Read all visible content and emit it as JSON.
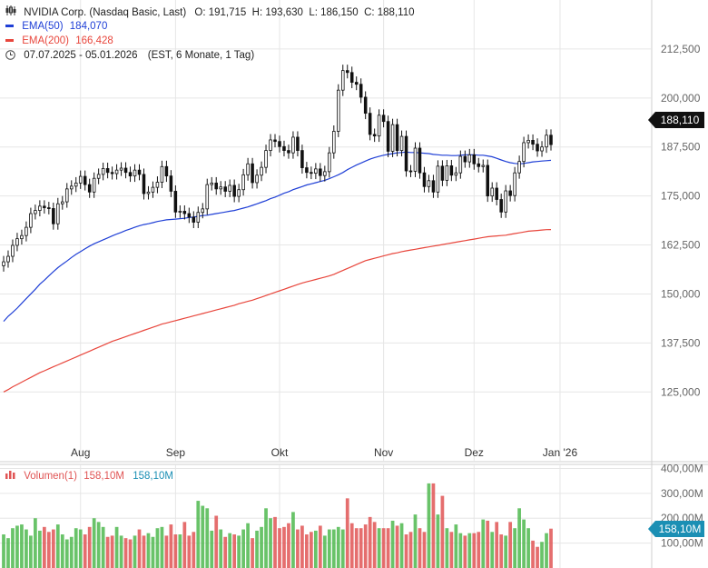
{
  "colors": {
    "up": "#4fb84f",
    "down": "#e05555",
    "ema50": "#1f3fd6",
    "ema200": "#e8463c",
    "candle": "#111111",
    "grid": "#e6e6e6",
    "axis_text": "#666666",
    "vol_badge": "#1b8fb4",
    "price_badge": "#111111"
  },
  "header": {
    "title": "NVIDIA Corp. (Nasdaq Basic, Last)",
    "ohlc": "O: 191,715  H: 193,630  L: 186,150  C: 188,110",
    "ema50_label": "EMA(50)",
    "ema50_value": "184,070",
    "ema200_label": "EMA(200)",
    "ema200_value": "166,428",
    "range": "07.07.2025 - 05.01.2026",
    "range_note": "(EST, 6 Monate, 1 Tag)",
    "chart_icon": "candlestick-icon",
    "clock_icon": "clock-icon"
  },
  "price_badge": "188,110",
  "volume_header": {
    "label": "Volumen(1)",
    "value_red": "158,10M",
    "value_blue": "158,10M"
  },
  "volume_badge": "158,10M",
  "chart_data": [
    {
      "type": "candlestick",
      "title": "NVIDIA Corp. (Nasdaq Basic, Last)",
      "x_tick_labels": [
        "Aug",
        "Sep",
        "Okt",
        "Nov",
        "Dez",
        "Jan '26"
      ],
      "y_tick_labels": [
        "212,500",
        "200,000",
        "187,500",
        "175,000",
        "162,500",
        "150,000",
        "137,500",
        "125,000"
      ],
      "ylim": [
        113,
        225
      ],
      "grid": true,
      "close": [
        158.2,
        159.6,
        162.4,
        164.1,
        164.9,
        167.0,
        170.5,
        171.3,
        172.4,
        172.0,
        171.8,
        167.9,
        173.0,
        173.5,
        176.8,
        177.5,
        178.3,
        180.0,
        177.9,
        176.0,
        179.5,
        180.5,
        182.0,
        181.0,
        180.7,
        181.6,
        182.1,
        181.0,
        180.1,
        181.6,
        180.5,
        175.6,
        176.0,
        177.2,
        178.5,
        182.5,
        180.1,
        176.2,
        170.9,
        171.1,
        170.5,
        169.6,
        168.3,
        170.8,
        171.7,
        177.9,
        178.3,
        176.8,
        177.3,
        176.2,
        177.7,
        174.9,
        176.6,
        180.4,
        183.2,
        178.4,
        180.3,
        182.3,
        186.6,
        189.3,
        188.9,
        187.6,
        186.6,
        186.0,
        190.0,
        186.6,
        182.2,
        181.0,
        180.8,
        181.9,
        180.2,
        181.2,
        186.0,
        191.5,
        202.0,
        207.0,
        206.5,
        204.0,
        203.5,
        200.2,
        196.1,
        190.7,
        190.3,
        195.6,
        194.0,
        186.4,
        193.2,
        186.6,
        190.2,
        181.4,
        181.3,
        187.2,
        180.9,
        177.4,
        178.9,
        176.0,
        182.6,
        179.0,
        182.7,
        180.3,
        180.9,
        185.1,
        183.7,
        185.5,
        183.2,
        182.5,
        182.8,
        175.0,
        177.0,
        174.1,
        170.9,
        176.3,
        175.1,
        180.9,
        183.8,
        188.6,
        189.2,
        188.2,
        186.5,
        187.5,
        190.5,
        188.1
      ],
      "ema50": [
        143.0,
        144.3,
        145.3,
        146.4,
        147.6,
        148.8,
        150.0,
        151.2,
        152.5,
        153.5,
        154.6,
        155.7,
        156.7,
        157.6,
        158.4,
        159.3,
        160.1,
        160.8,
        161.5,
        162.2,
        162.8,
        163.3,
        163.8,
        164.3,
        164.8,
        165.3,
        165.7,
        166.2,
        166.6,
        167.0,
        167.4,
        167.7,
        167.9,
        168.2,
        168.5,
        168.7,
        168.9,
        169.0,
        169.1,
        169.2,
        169.3,
        169.5,
        169.6,
        169.8,
        170.0,
        170.1,
        170.3,
        170.5,
        170.7,
        170.9,
        171.1,
        171.3,
        171.6,
        171.9,
        172.2,
        172.6,
        173.0,
        173.4,
        173.8,
        174.3,
        174.7,
        175.2,
        175.7,
        176.1,
        176.6,
        177.0,
        177.4,
        177.8,
        178.1,
        178.4,
        178.7,
        179.0,
        179.4,
        179.9,
        180.4,
        181.0,
        181.7,
        182.3,
        182.9,
        183.4,
        183.9,
        184.4,
        184.8,
        185.1,
        185.4,
        185.6,
        185.8,
        186.0,
        186.1,
        186.2,
        186.1,
        186.1,
        186.0,
        185.9,
        185.8,
        185.6,
        185.5,
        185.4,
        185.4,
        185.3,
        185.3,
        185.4,
        185.5,
        185.5,
        185.5,
        185.4,
        185.4,
        185.2,
        185.0,
        184.6,
        184.2,
        183.8,
        183.5,
        183.3,
        183.2,
        183.3,
        183.5,
        183.7,
        183.8,
        183.9,
        184.0,
        184.1
      ],
      "ema200": [
        125.0,
        125.6,
        126.3,
        126.9,
        127.5,
        128.1,
        128.7,
        129.3,
        129.9,
        130.4,
        130.9,
        131.4,
        131.9,
        132.4,
        132.9,
        133.4,
        133.9,
        134.4,
        134.9,
        135.4,
        135.9,
        136.4,
        136.9,
        137.4,
        137.9,
        138.3,
        138.7,
        139.1,
        139.5,
        139.9,
        140.3,
        140.7,
        141.1,
        141.5,
        141.9,
        142.3,
        142.6,
        142.9,
        143.2,
        143.5,
        143.8,
        144.1,
        144.4,
        144.7,
        145.0,
        145.3,
        145.6,
        145.9,
        146.2,
        146.5,
        146.8,
        147.1,
        147.5,
        147.8,
        148.1,
        148.4,
        148.8,
        149.2,
        149.6,
        150.0,
        150.4,
        150.8,
        151.2,
        151.6,
        152.0,
        152.4,
        152.8,
        153.1,
        153.4,
        153.7,
        154.0,
        154.3,
        154.6,
        155.0,
        155.5,
        156.0,
        156.5,
        157.0,
        157.5,
        158.0,
        158.5,
        158.8,
        159.1,
        159.4,
        159.7,
        160.0,
        160.3,
        160.5,
        160.8,
        161.0,
        161.2,
        161.4,
        161.6,
        161.8,
        162.0,
        162.2,
        162.4,
        162.6,
        162.8,
        163.0,
        163.2,
        163.4,
        163.6,
        163.8,
        164.0,
        164.2,
        164.4,
        164.6,
        164.7,
        164.8,
        164.9,
        165.0,
        165.2,
        165.4,
        165.6,
        165.8,
        166.0,
        166.1,
        166.2,
        166.3,
        166.4,
        166.428
      ]
    },
    {
      "type": "bar",
      "title": "Volumen(1)",
      "y_tick_labels": [
        "400,00M",
        "300,00M",
        "200,00M",
        "100,00M"
      ],
      "ylim": [
        0,
        420
      ],
      "values": [
        135,
        120,
        160,
        170,
        175,
        155,
        130,
        200,
        150,
        165,
        145,
        155,
        175,
        135,
        115,
        125,
        160,
        155,
        135,
        165,
        200,
        185,
        165,
        125,
        130,
        165,
        130,
        120,
        115,
        130,
        155,
        130,
        140,
        125,
        160,
        165,
        130,
        175,
        135,
        135,
        185,
        130,
        145,
        270,
        250,
        240,
        150,
        210,
        155,
        125,
        140,
        135,
        130,
        155,
        180,
        120,
        150,
        165,
        240,
        200,
        205,
        160,
        165,
        180,
        225,
        155,
        170,
        135,
        145,
        150,
        170,
        130,
        155,
        155,
        165,
        155,
        280,
        180,
        160,
        160,
        175,
        205,
        185,
        160,
        160,
        160,
        190,
        170,
        180,
        135,
        145,
        215,
        160,
        145,
        340,
        340,
        215,
        290,
        160,
        145,
        175,
        140,
        130,
        140,
        140,
        145,
        195,
        190,
        145,
        185,
        135,
        130,
        185,
        160,
        240,
        195,
        160,
        110,
        85,
        105,
        140,
        158.1
      ]
    }
  ]
}
